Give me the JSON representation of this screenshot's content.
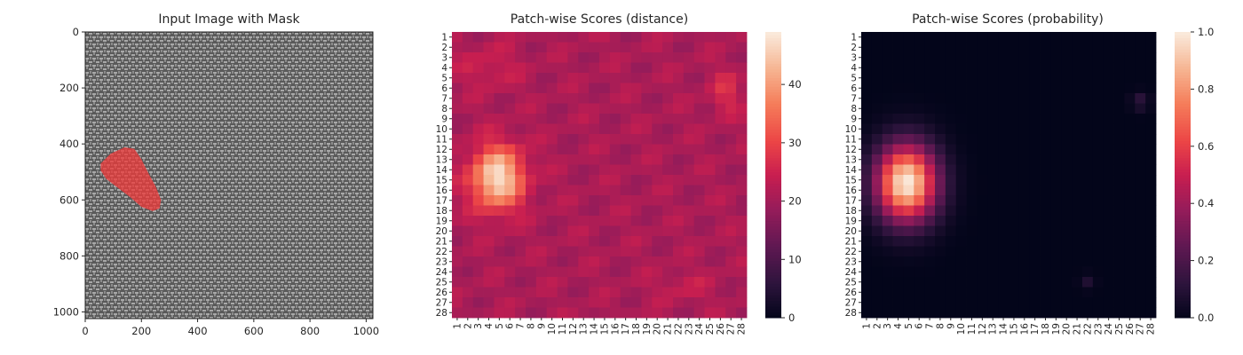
{
  "chart_data": [
    {
      "type": "image",
      "title": "Input Image with Mask",
      "xlim": [
        0,
        1024
      ],
      "ylim": [
        1024,
        0
      ],
      "xticks": [
        0,
        200,
        400,
        600,
        800,
        1000
      ],
      "yticks": [
        0,
        200,
        400,
        600,
        800,
        1000
      ],
      "image_description_colors": {
        "background": "#5a5a5a",
        "thread_light": "#a8a8a8",
        "mask": "#f03a3a"
      },
      "mask_polygon": [
        [
          55,
          470
        ],
        [
          90,
          435
        ],
        [
          140,
          412
        ],
        [
          175,
          418
        ],
        [
          200,
          455
        ],
        [
          225,
          505
        ],
        [
          250,
          550
        ],
        [
          270,
          600
        ],
        [
          265,
          630
        ],
        [
          240,
          640
        ],
        [
          200,
          625
        ],
        [
          160,
          590
        ],
        [
          120,
          560
        ],
        [
          75,
          525
        ],
        [
          55,
          495
        ]
      ]
    },
    {
      "type": "heatmap",
      "title": "Patch-wise Scores (distance)",
      "rows": 28,
      "cols": 28,
      "row_labels": [
        "1",
        "2",
        "3",
        "4",
        "5",
        "6",
        "7",
        "8",
        "9",
        "10",
        "11",
        "12",
        "13",
        "14",
        "15",
        "16",
        "17",
        "18",
        "19",
        "20",
        "21",
        "22",
        "23",
        "24",
        "25",
        "26",
        "27",
        "28"
      ],
      "col_labels": [
        "1",
        "2",
        "3",
        "4",
        "5",
        "6",
        "7",
        "8",
        "9",
        "10",
        "11",
        "12",
        "13",
        "14",
        "15",
        "16",
        "17",
        "18",
        "19",
        "20",
        "21",
        "22",
        "23",
        "24",
        "25",
        "26",
        "27",
        "28"
      ],
      "colorbar_range": [
        0,
        49
      ],
      "colorbar_ticks": [
        0,
        10,
        20,
        30,
        40
      ],
      "base_value": 21,
      "hotspots": [
        {
          "center": [
            14.8,
            4.8
          ],
          "peak": 48,
          "sigma": [
            2.1,
            1.7
          ]
        },
        {
          "center": [
            4.0,
            4.0
          ],
          "peak": 4,
          "sigma": [
            1.5,
            2.0
          ]
        },
        {
          "center": [
            6.5,
            26.5
          ],
          "peak": 6,
          "sigma": [
            1.5,
            1.0
          ]
        },
        {
          "center": [
            25.5,
            22.5
          ],
          "peak": 3,
          "sigma": [
            1.0,
            2.0
          ]
        }
      ],
      "colorscale": "rocket"
    },
    {
      "type": "heatmap",
      "title": "Patch-wise Scores (probability)",
      "rows": 28,
      "cols": 28,
      "row_labels": [
        "1",
        "2",
        "3",
        "4",
        "5",
        "6",
        "7",
        "8",
        "9",
        "10",
        "11",
        "12",
        "13",
        "14",
        "15",
        "16",
        "17",
        "18",
        "19",
        "20",
        "21",
        "22",
        "23",
        "24",
        "25",
        "26",
        "27",
        "28"
      ],
      "col_labels": [
        "1",
        "2",
        "3",
        "4",
        "5",
        "6",
        "7",
        "8",
        "9",
        "10",
        "11",
        "12",
        "13",
        "14",
        "15",
        "16",
        "17",
        "18",
        "19",
        "20",
        "21",
        "22",
        "23",
        "24",
        "25",
        "26",
        "27",
        "28"
      ],
      "colorbar_range": [
        0.0,
        1.0
      ],
      "colorbar_ticks": [
        "0.0",
        "0.2",
        "0.4",
        "0.6",
        "0.8",
        "1.0"
      ],
      "hotspots": [
        {
          "center": [
            15.3,
            4.8
          ],
          "peak": 1.0,
          "sigma": [
            2.6,
            2.0
          ]
        },
        {
          "center": [
            7.3,
            27.0
          ],
          "peak": 0.12,
          "sigma": [
            0.6,
            0.6
          ]
        },
        {
          "center": [
            25.0,
            22.0
          ],
          "peak": 0.08,
          "sigma": [
            0.5,
            0.5
          ]
        }
      ],
      "colorscale": "rocket"
    }
  ]
}
